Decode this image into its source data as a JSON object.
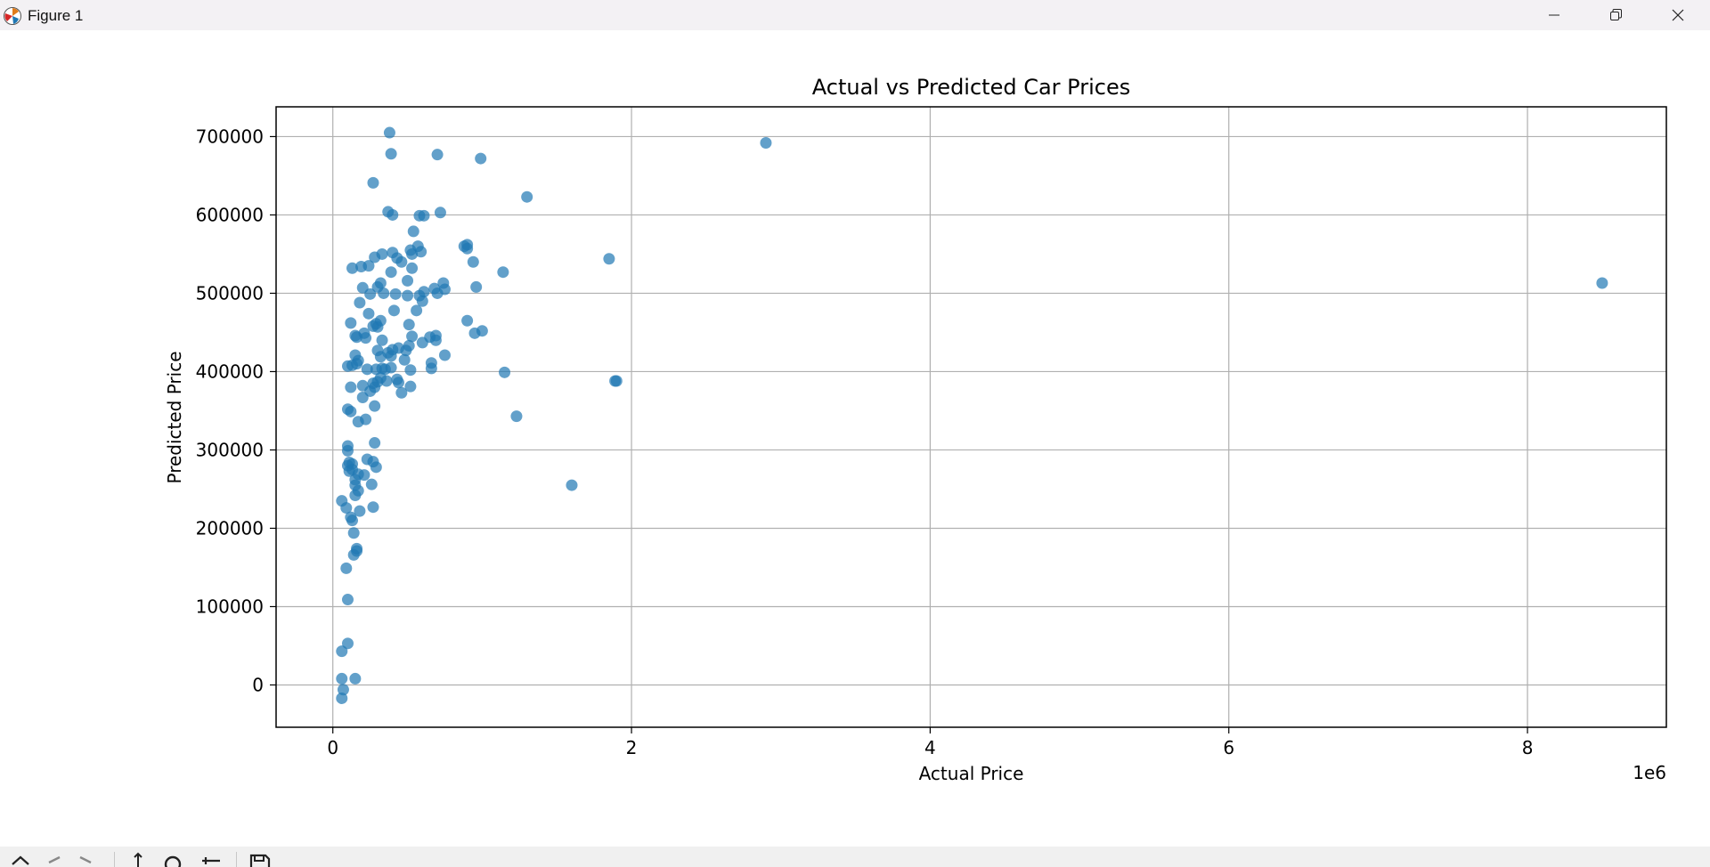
{
  "window": {
    "title": "Figure 1",
    "controls": [
      "minimize",
      "maximize",
      "close"
    ]
  },
  "toolbar": {
    "icons": [
      "home-icon",
      "back-icon",
      "forward-icon",
      "pan-icon",
      "zoom-icon",
      "configure-subplots-icon",
      "save-icon"
    ]
  },
  "colors": {
    "marker": "#1f77b4",
    "titlebar": "#f3f1f4",
    "toolbar": "#f0f0f0",
    "grid": "#b0b0b0"
  },
  "chart_data": {
    "type": "scatter",
    "title": "Actual vs Predicted Car Prices",
    "xlabel": "Actual Price",
    "ylabel": "Predicted Price",
    "x_offset_text": "1e6",
    "xlim": [
      -380000,
      8930000
    ],
    "ylim": [
      -54000,
      738000
    ],
    "xticks": [
      0,
      2000000,
      4000000,
      6000000,
      8000000
    ],
    "xtick_labels": [
      "0",
      "2",
      "4",
      "6",
      "8"
    ],
    "yticks": [
      0,
      100000,
      200000,
      300000,
      400000,
      500000,
      600000,
      700000
    ],
    "ytick_labels": [
      "0",
      "100000",
      "200000",
      "300000",
      "400000",
      "500000",
      "600000",
      "700000"
    ],
    "grid": true,
    "marker_alpha": 0.7,
    "series": [
      {
        "points": [
          [
            380000,
            705000
          ],
          [
            390000,
            678000
          ],
          [
            700000,
            677000
          ],
          [
            990000,
            672000
          ],
          [
            2900000,
            692000
          ],
          [
            270000,
            641000
          ],
          [
            1300000,
            623000
          ],
          [
            370000,
            604000
          ],
          [
            400000,
            600000
          ],
          [
            580000,
            599000
          ],
          [
            610000,
            599000
          ],
          [
            720000,
            603000
          ],
          [
            540000,
            579000
          ],
          [
            400000,
            552000
          ],
          [
            330000,
            550000
          ],
          [
            280000,
            546000
          ],
          [
            430000,
            545000
          ],
          [
            460000,
            540000
          ],
          [
            520000,
            555000
          ],
          [
            570000,
            560000
          ],
          [
            590000,
            553000
          ],
          [
            530000,
            550000
          ],
          [
            880000,
            560000
          ],
          [
            900000,
            562000
          ],
          [
            900000,
            557000
          ],
          [
            940000,
            540000
          ],
          [
            1850000,
            544000
          ],
          [
            130000,
            532000
          ],
          [
            190000,
            534000
          ],
          [
            240000,
            535000
          ],
          [
            390000,
            527000
          ],
          [
            530000,
            532000
          ],
          [
            1140000,
            527000
          ],
          [
            320000,
            513000
          ],
          [
            500000,
            516000
          ],
          [
            200000,
            507000
          ],
          [
            300000,
            508000
          ],
          [
            680000,
            506000
          ],
          [
            700000,
            500000
          ],
          [
            740000,
            513000
          ],
          [
            750000,
            505000
          ],
          [
            960000,
            508000
          ],
          [
            250000,
            499000
          ],
          [
            340000,
            500000
          ],
          [
            420000,
            499000
          ],
          [
            500000,
            497000
          ],
          [
            580000,
            497000
          ],
          [
            600000,
            490000
          ],
          [
            610000,
            502000
          ],
          [
            180000,
            488000
          ],
          [
            560000,
            478000
          ],
          [
            240000,
            474000
          ],
          [
            410000,
            478000
          ],
          [
            120000,
            462000
          ],
          [
            290000,
            461000
          ],
          [
            320000,
            465000
          ],
          [
            270000,
            458000
          ],
          [
            300000,
            457000
          ],
          [
            510000,
            460000
          ],
          [
            900000,
            465000
          ],
          [
            210000,
            449000
          ],
          [
            150000,
            446000
          ],
          [
            160000,
            444000
          ],
          [
            220000,
            443000
          ],
          [
            530000,
            445000
          ],
          [
            650000,
            444000
          ],
          [
            690000,
            446000
          ],
          [
            950000,
            449000
          ],
          [
            1000000,
            452000
          ],
          [
            330000,
            440000
          ],
          [
            600000,
            437000
          ],
          [
            690000,
            440000
          ],
          [
            300000,
            427000
          ],
          [
            400000,
            428000
          ],
          [
            440000,
            430000
          ],
          [
            510000,
            433000
          ],
          [
            490000,
            427000
          ],
          [
            150000,
            421000
          ],
          [
            170000,
            414000
          ],
          [
            320000,
            419000
          ],
          [
            370000,
            424000
          ],
          [
            390000,
            420000
          ],
          [
            480000,
            415000
          ],
          [
            750000,
            421000
          ],
          [
            130000,
            408000
          ],
          [
            100000,
            407000
          ],
          [
            160000,
            410000
          ],
          [
            230000,
            403000
          ],
          [
            290000,
            403000
          ],
          [
            330000,
            404000
          ],
          [
            350000,
            403000
          ],
          [
            390000,
            405000
          ],
          [
            520000,
            402000
          ],
          [
            660000,
            404000
          ],
          [
            660000,
            411000
          ],
          [
            1150000,
            399000
          ],
          [
            1890000,
            388000
          ],
          [
            1900000,
            388000
          ],
          [
            320000,
            392000
          ],
          [
            300000,
            387000
          ],
          [
            360000,
            388000
          ],
          [
            440000,
            386000
          ],
          [
            430000,
            390000
          ],
          [
            270000,
            385000
          ],
          [
            280000,
            380000
          ],
          [
            200000,
            382000
          ],
          [
            120000,
            380000
          ],
          [
            250000,
            375000
          ],
          [
            460000,
            373000
          ],
          [
            520000,
            381000
          ],
          [
            200000,
            367000
          ],
          [
            280000,
            356000
          ],
          [
            100000,
            352000
          ],
          [
            120000,
            349000
          ],
          [
            220000,
            339000
          ],
          [
            170000,
            336000
          ],
          [
            1230000,
            343000
          ],
          [
            280000,
            309000
          ],
          [
            100000,
            305000
          ],
          [
            100000,
            299000
          ],
          [
            110000,
            284000
          ],
          [
            130000,
            282000
          ],
          [
            130000,
            275000
          ],
          [
            100000,
            280000
          ],
          [
            110000,
            273000
          ],
          [
            270000,
            285000
          ],
          [
            290000,
            278000
          ],
          [
            230000,
            288000
          ],
          [
            170000,
            269000
          ],
          [
            210000,
            268000
          ],
          [
            150000,
            262000
          ],
          [
            150000,
            255000
          ],
          [
            260000,
            256000
          ],
          [
            1600000,
            255000
          ],
          [
            170000,
            248000
          ],
          [
            150000,
            242000
          ],
          [
            60000,
            235000
          ],
          [
            90000,
            226000
          ],
          [
            180000,
            222000
          ],
          [
            270000,
            227000
          ],
          [
            120000,
            214000
          ],
          [
            130000,
            210000
          ],
          [
            140000,
            194000
          ],
          [
            160000,
            174000
          ],
          [
            160000,
            171000
          ],
          [
            140000,
            166000
          ],
          [
            90000,
            149000
          ],
          [
            100000,
            109000
          ],
          [
            100000,
            53000
          ],
          [
            60000,
            43000
          ],
          [
            60000,
            8000
          ],
          [
            150000,
            8000
          ],
          [
            70000,
            -6000
          ],
          [
            60000,
            -17000
          ],
          [
            8500000,
            513000
          ]
        ]
      }
    ]
  }
}
